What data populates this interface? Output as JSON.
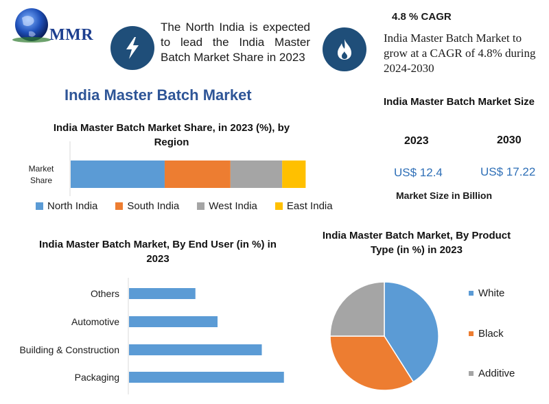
{
  "logo": {
    "text": "MMR"
  },
  "info_left": {
    "text": "The North India is expected to lead the India Master Batch Market Share in 2023"
  },
  "info_right": {
    "heading": "4.8 % CAGR",
    "text": "India Master Batch Market to grow at a CAGR of 4.8% during 2024-2030"
  },
  "main_title": "India Master Batch Market",
  "colors": {
    "blue": "#5b9bd5",
    "orange": "#ed7d31",
    "gray": "#a5a5a5",
    "yellow": "#ffc000",
    "icon_bg": "#1f4e79",
    "title_blue": "#2e5597",
    "value_blue": "#2e6fb7"
  },
  "chart_data": [
    {
      "type": "bar",
      "orientation": "horizontal-stacked",
      "title": "India Master Batch Market Share, in 2023 (%), by Region",
      "categories": [
        "Market Share"
      ],
      "series": [
        {
          "name": "North India",
          "values": [
            40
          ],
          "color": "#5b9bd5"
        },
        {
          "name": "South India",
          "values": [
            28
          ],
          "color": "#ed7d31"
        },
        {
          "name": "West India",
          "values": [
            22
          ],
          "color": "#a5a5a5"
        },
        {
          "name": "East India",
          "values": [
            10
          ],
          "color": "#ffc000"
        }
      ],
      "xlim": [
        0,
        100
      ],
      "legend": "bottom"
    },
    {
      "type": "bar",
      "orientation": "horizontal",
      "title": "India Master Batch Market, By End User (in %) in 2023",
      "categories": [
        "Others",
        "Automotive",
        "Building & Construction",
        "Packaging"
      ],
      "values": [
        9,
        12,
        18,
        21
      ],
      "xlim": [
        0,
        40
      ],
      "color": "#5b9bd5"
    },
    {
      "type": "pie",
      "title": "India Master Batch Market, By Product Type (in %) in 2023",
      "labels": [
        "White",
        "Black",
        "Additive"
      ],
      "values": [
        41,
        34,
        25
      ],
      "colors": [
        "#5b9bd5",
        "#ed7d31",
        "#a5a5a5"
      ],
      "legend": "right"
    }
  ],
  "market_size": {
    "title": "India Master Batch Market Size",
    "year1": "2023",
    "year2": "2030",
    "value1": "US$ 12.4",
    "value2": "US$ 17.22",
    "unit": "Market Size in Billion"
  }
}
